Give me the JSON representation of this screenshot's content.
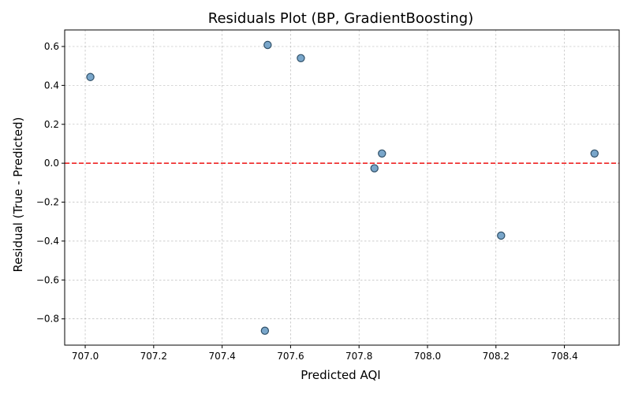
{
  "chart_data": {
    "type": "scatter",
    "title": "Residuals Plot (BP, GradientBoosting)",
    "xlabel": "Predicted AQI",
    "ylabel": "Residual (True - Predicted)",
    "xlim": [
      706.94,
      708.56
    ],
    "ylim": [
      -0.935,
      0.685
    ],
    "xticks": [
      707.0,
      707.2,
      707.4,
      707.6,
      707.8,
      708.0,
      708.2,
      708.4
    ],
    "xtick_labels": [
      "707.0",
      "707.2",
      "707.4",
      "707.6",
      "707.8",
      "708.0",
      "708.2",
      "708.4"
    ],
    "yticks": [
      -0.8,
      -0.6,
      -0.4,
      -0.2,
      0.0,
      0.2,
      0.4,
      0.6
    ],
    "ytick_labels": [
      "−0.8",
      "−0.6",
      "−0.4",
      "−0.2",
      "0.0",
      "0.2",
      "0.4",
      "0.6"
    ],
    "grid": true,
    "reference_line": {
      "y": 0.0,
      "style": "dashed",
      "color": "#ee1111"
    },
    "point_color": "#6a9cc4",
    "point_edge_color": "#2f4f67",
    "points": [
      {
        "x": 707.015,
        "y": 0.443
      },
      {
        "x": 707.525,
        "y": -0.861
      },
      {
        "x": 707.533,
        "y": 0.608
      },
      {
        "x": 707.63,
        "y": 0.54
      },
      {
        "x": 707.845,
        "y": -0.026
      },
      {
        "x": 707.867,
        "y": 0.05
      },
      {
        "x": 708.215,
        "y": -0.372
      },
      {
        "x": 708.488,
        "y": 0.05
      }
    ]
  }
}
